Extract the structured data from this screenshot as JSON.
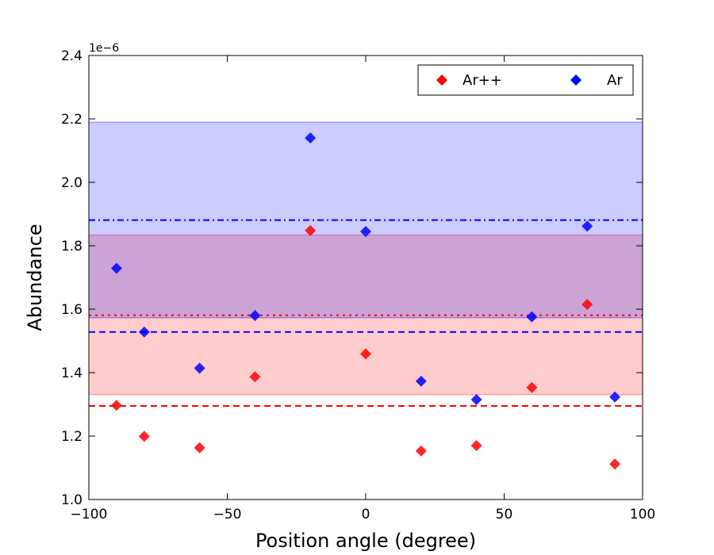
{
  "chart_data": {
    "type": "scatter",
    "title": "",
    "xlabel": "Position angle (degree)",
    "ylabel": "Abundance",
    "y_offset_label": "1e−6",
    "xlim": [
      -100,
      100
    ],
    "ylim": [
      1.0,
      2.4
    ],
    "xticks": [
      -100,
      -50,
      0,
      50,
      100
    ],
    "xtick_labels": [
      "−100",
      "−50",
      "0",
      "50",
      "100"
    ],
    "yticks": [
      1.0,
      1.2,
      1.4,
      1.6,
      1.8,
      2.0,
      2.2,
      2.4
    ],
    "ytick_labels": [
      "1.0",
      "1.2",
      "1.4",
      "1.6",
      "1.8",
      "2.0",
      "2.2",
      "2.4"
    ],
    "legend_position": "top-right",
    "series": [
      {
        "name": "Ar++",
        "color": "#ff0000",
        "marker": "diamond",
        "x": [
          -90,
          -80,
          -60,
          -40,
          -20,
          0,
          20,
          40,
          60,
          80,
          90
        ],
        "y": [
          1.297,
          1.199,
          1.163,
          1.387,
          1.848,
          1.459,
          1.153,
          1.17,
          1.353,
          1.615,
          1.112
        ]
      },
      {
        "name": "Ar",
        "color": "#0000ff",
        "marker": "diamond",
        "x": [
          -90,
          -80,
          -60,
          -40,
          -20,
          0,
          20,
          40,
          60,
          80,
          90
        ],
        "y": [
          1.729,
          1.528,
          1.414,
          1.58,
          2.14,
          1.845,
          1.373,
          1.315,
          1.576,
          1.862,
          1.323
        ]
      }
    ],
    "bands": [
      {
        "series": "Ar++",
        "color": "#ff0000",
        "y_low": 1.331,
        "y_high": 1.834
      },
      {
        "series": "Ar",
        "color": "#0000ff",
        "y_low": 1.573,
        "y_high": 2.19
      }
    ],
    "reference_lines": [
      {
        "series": "Ar++",
        "style": "dashed",
        "color": "#ff0000",
        "y": 1.295
      },
      {
        "series": "Ar++",
        "style": "dotted",
        "color": "#ff0000",
        "y": 1.581
      },
      {
        "series": "Ar",
        "style": "dashed",
        "color": "#0000ff",
        "y": 1.528
      },
      {
        "series": "Ar",
        "style": "dashdot",
        "color": "#0000ff",
        "y": 1.881
      }
    ]
  }
}
